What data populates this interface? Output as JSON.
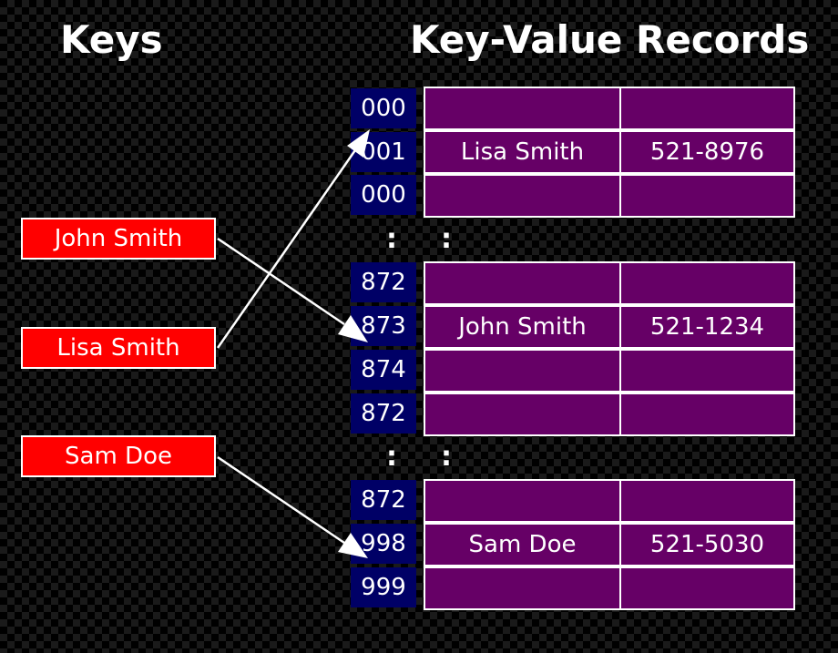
{
  "headings": {
    "keys": "Keys",
    "records": "Key-Value Records"
  },
  "keys": [
    "John Smith",
    "Lisa Smith",
    "Sam Doe"
  ],
  "buckets": [
    "000",
    "001",
    "000",
    "872",
    "873",
    "874",
    "872",
    "872",
    "998",
    "999"
  ],
  "records": [
    {
      "name": "",
      "phone": ""
    },
    {
      "name": "Lisa Smith",
      "phone": "521-8976"
    },
    {
      "name": "",
      "phone": ""
    },
    {
      "name": "",
      "phone": ""
    },
    {
      "name": "John Smith",
      "phone": "521-1234"
    },
    {
      "name": "",
      "phone": ""
    },
    {
      "name": "",
      "phone": ""
    },
    {
      "name": "",
      "phone": ""
    },
    {
      "name": "Sam Doe",
      "phone": "521-5030"
    },
    {
      "name": "",
      "phone": ""
    }
  ],
  "ellipsis": ":",
  "colors": {
    "key_fill": "#ff0000",
    "bucket_fill": "#000066",
    "record_fill": "#660066",
    "arrow": "#ffffff"
  }
}
